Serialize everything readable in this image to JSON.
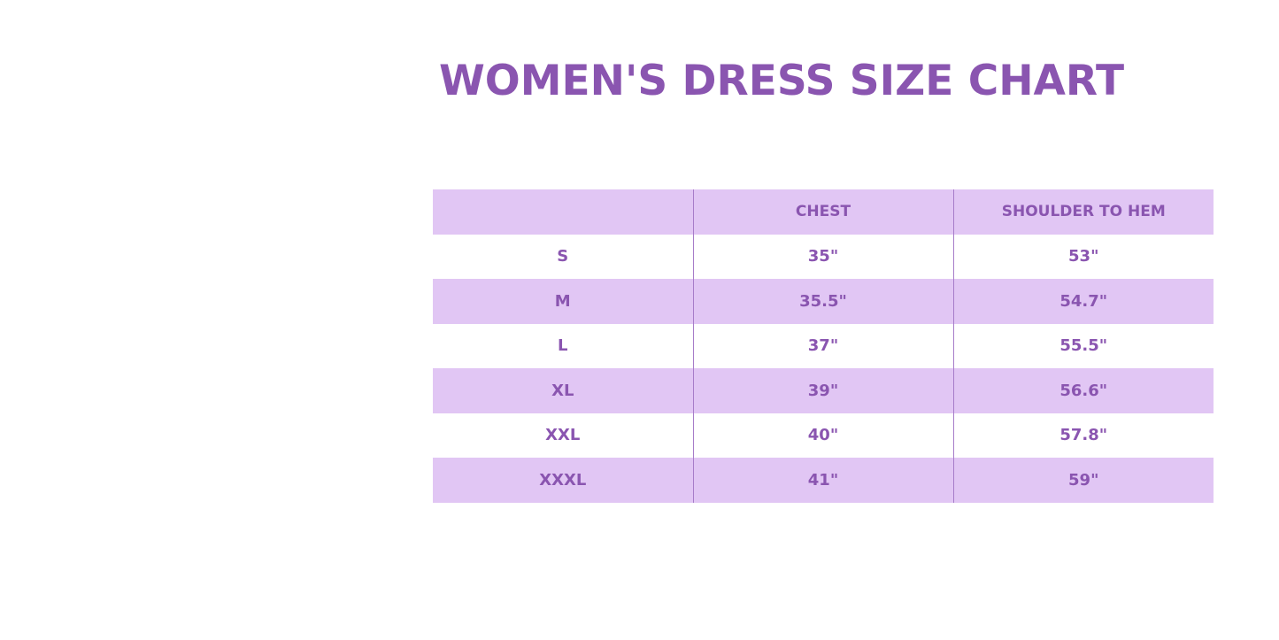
{
  "title": "WOMEN'S DRESS SIZE CHART",
  "table": {
    "headers": [
      "",
      "CHEST",
      "SHOULDER TO HEM"
    ],
    "rows": [
      [
        "S",
        "35\"",
        "53\""
      ],
      [
        "M",
        "35.5\"",
        "54.7\""
      ],
      [
        "L",
        "37\"",
        "55.5\""
      ],
      [
        "XL",
        "39\"",
        "56.6\""
      ],
      [
        "XXL",
        "40\"",
        "57.8\""
      ],
      [
        "XXXL",
        "41\"",
        "59\""
      ]
    ]
  },
  "colors": {
    "accent": "#8a55b0",
    "band": "#e1c6f4"
  }
}
